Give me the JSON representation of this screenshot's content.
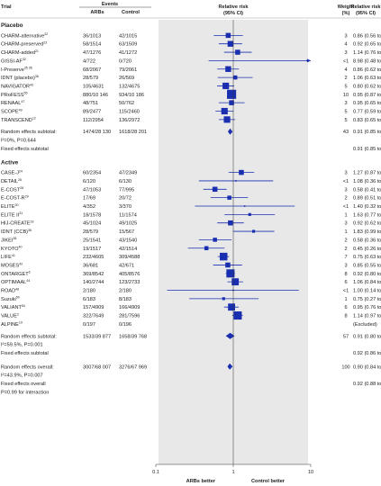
{
  "chart_data": {
    "type": "forest",
    "header": {
      "trial": "Trial",
      "events": "Events",
      "arbs": "ARBs",
      "control": "Control",
      "rr_line1": "Relative risk",
      "rr_line2": "(95% CI)",
      "weight_line1": "Weight",
      "weight_line2": "(%)",
      "rrci_line1": "Relative risk",
      "rrci_line2": "(95% CI)"
    },
    "x_scale": "log",
    "xlim": [
      0.1,
      10
    ],
    "x_ticks": [
      {
        "value": 0.1,
        "label": "0.1"
      },
      {
        "value": 1,
        "label": "1"
      },
      {
        "value": 10,
        "label": "10"
      }
    ],
    "x_left_label": "ARBs better",
    "x_right_label": "Control better",
    "subgroups": [
      {
        "name": "Placebo",
        "trials": [
          {
            "name": "CHARM-alternative",
            "ref": "22",
            "arbs": "36/1013",
            "control": "42/1015",
            "weight": "3",
            "rr": 0.86,
            "lo": 0.56,
            "hi": 1.33,
            "ci_text": "0.86 (0.56 to 1.33)"
          },
          {
            "name": "CHARM-preserved",
            "ref": "23",
            "arbs": "58/1514",
            "control": "63/1509",
            "weight": "4",
            "rr": 0.92,
            "lo": 0.65,
            "hi": 1.3,
            "ci_text": "0.92 (0.65 to 1.30)"
          },
          {
            "name": "CHARM-added",
            "ref": "21",
            "arbs": "47/1276",
            "control": "41/1272",
            "weight": "3",
            "rr": 1.14,
            "lo": 0.76,
            "hi": 1.73,
            "ci_text": "1.14 (0.76 to 1.73)"
          },
          {
            "name": "GISSI-AF",
            "ref": "32",
            "arbs": "4/722",
            "control": "0/720",
            "weight": "<1",
            "rr": 8.98,
            "lo": 0.48,
            "hi": 166.4,
            "ci_text": "8.98 (0.48 to 166.40)"
          },
          {
            "name": "I-Preserve",
            "ref": "35 36",
            "arbs": "68/2067",
            "control": "79/2061",
            "weight": "4",
            "rr": 0.86,
            "lo": 0.62,
            "hi": 1.18,
            "ci_text": "0.86 (0.62 to 1.18)"
          },
          {
            "name": "IDNT (placebo)",
            "ref": "36",
            "arbs": "28/579",
            "control": "26/569",
            "weight": "2",
            "rr": 1.06,
            "lo": 0.63,
            "hi": 1.78,
            "ci_text": "1.06 (0.63 to 1.78)"
          },
          {
            "name": "NAVIGATOR",
            "ref": "43",
            "arbs": "105/4631",
            "control": "132/4675",
            "weight": "5",
            "rr": 0.8,
            "lo": 0.62,
            "hi": 1.03,
            "ci_text": "0.80 (0.62 to 1.03)"
          },
          {
            "name": "PRoFESS",
            "ref": "55",
            "arbs": "880/10 146",
            "control": "934/10 186",
            "weight": "10",
            "rr": 0.95,
            "lo": 0.87,
            "hi": 1.03,
            "ci_text": "0.95 (0.87 to 1.03)"
          },
          {
            "name": "RENAAL",
            "ref": "47",
            "arbs": "48/751",
            "control": "50/762",
            "weight": "3",
            "rr": 0.95,
            "lo": 0.65,
            "hi": 1.4,
            "ci_text": "0.95 (0.65 to 1.40)"
          },
          {
            "name": "SCOPE",
            "ref": "49",
            "arbs": "89/2477",
            "control": "115/2460",
            "weight": "5",
            "rr": 0.77,
            "lo": 0.59,
            "hi": 1.01,
            "ci_text": "0.77 (0.59 to 1.01)"
          },
          {
            "name": "TRANSCEND",
            "ref": "12",
            "arbs": "112/2954",
            "control": "136/2972",
            "weight": "5",
            "rr": 0.83,
            "lo": 0.65,
            "hi": 1.06,
            "ci_text": "0.83 (0.65 to 1.06)"
          }
        ],
        "random": {
          "label": "Random effects subtotal:",
          "arbs": "1474/28 130",
          "control": "1618/28 201",
          "weight": "43",
          "rr": 0.91,
          "lo": 0.85,
          "hi": 0.98,
          "ci_text": "0.91 (0.85 to 0.98)"
        },
        "heterogeneity": "I²=0%, P=0.644",
        "fixed": {
          "label": "Fixed effects subtotal",
          "rr": 0.91,
          "lo": 0.85,
          "hi": 0.98,
          "ci_text": "0.91 (0.85 to 0.98)"
        }
      },
      {
        "name": "Active",
        "trials": [
          {
            "name": "CASE-J",
            "ref": "24",
            "arbs": "60/2354",
            "control": "47/2349",
            "weight": "3",
            "rr": 1.27,
            "lo": 0.87,
            "hi": 1.86,
            "ci_text": "1.27 (0.87 to 1.86)"
          },
          {
            "name": "DETAIL",
            "ref": "26",
            "arbs": "6/120",
            "control": "6/130",
            "weight": "<1",
            "rr": 1.08,
            "lo": 0.36,
            "hi": 3.27,
            "ci_text": "1.08 (0.36 to 3.27)"
          },
          {
            "name": "E-COST",
            "ref": "28",
            "arbs": "47/1053",
            "control": "77/995",
            "weight": "3",
            "rr": 0.58,
            "lo": 0.41,
            "hi": 0.82,
            "ci_text": "0.58 (0.41 to 0.82)"
          },
          {
            "name": "E-COST-R",
            "ref": "29",
            "arbs": "17/69",
            "control": "20/72",
            "weight": "2",
            "rr": 0.89,
            "lo": 0.51,
            "hi": 1.55,
            "ci_text": "0.89 (0.51 to 1.55)"
          },
          {
            "name": "ELITE",
            "ref": "30",
            "arbs": "4/352",
            "control": "3/370",
            "weight": "<1",
            "rr": 1.4,
            "lo": 0.32,
            "hi": 6.22,
            "ci_text": "1.40 (0.32 to 6.22)"
          },
          {
            "name": "ELITE II",
            "ref": "31",
            "arbs": "18/1578",
            "control": "11/1574",
            "weight": "1",
            "rr": 1.63,
            "lo": 0.77,
            "hi": 3.44,
            "ci_text": "1.63 (0.77 to 3.44)"
          },
          {
            "name": "HIJ-CREATE",
            "ref": "33",
            "arbs": "45/1024",
            "control": "49/1025",
            "weight": "3",
            "rr": 0.92,
            "lo": 0.62,
            "hi": 1.37,
            "ci_text": "0.92 (0.62 to 1.37)"
          },
          {
            "name": "IDNT (CCB)",
            "ref": "36",
            "arbs": "28/579",
            "control": "15/567",
            "weight": "1",
            "rr": 1.83,
            "lo": 0.99,
            "hi": 3.39,
            "ci_text": "1.83 (0.99 to 3.39)"
          },
          {
            "name": "JIKEI",
            "ref": "38",
            "arbs": "25/1541",
            "control": "43/1540",
            "weight": "2",
            "rr": 0.58,
            "lo": 0.36,
            "hi": 0.95,
            "ci_text": "0.58 (0.36 to 0.95)"
          },
          {
            "name": "KYOTO",
            "ref": "40",
            "arbs": "19/1517",
            "control": "42/1514",
            "weight": "2",
            "rr": 0.45,
            "lo": 0.26,
            "hi": 0.77,
            "ci_text": "0.45 (0.26 to 0.77)"
          },
          {
            "name": "LIFE",
            "ref": "41",
            "arbs": "232/4605",
            "control": "309/4588",
            "weight": "7",
            "rr": 0.75,
            "lo": 0.63,
            "hi": 0.88,
            "ci_text": "0.75 (0.63 to 0.88)"
          },
          {
            "name": "MOSES",
            "ref": "42",
            "arbs": "36/681",
            "control": "42/671",
            "weight": "3",
            "rr": 0.85,
            "lo": 0.55,
            "hi": 1.3,
            "ci_text": "0.85 (0.55 to 1.30)"
          },
          {
            "name": "ONTARGET",
            "ref": "6",
            "arbs": "369/8542",
            "control": "405/8576",
            "weight": "8",
            "rr": 0.92,
            "lo": 0.8,
            "hi": 1.05,
            "ci_text": "0.92 (0.80 to 1.05)"
          },
          {
            "name": "OPTIMAAL",
            "ref": "44",
            "arbs": "140/2744",
            "control": "123/2733",
            "weight": "6",
            "rr": 1.06,
            "lo": 0.84,
            "hi": 1.34,
            "ci_text": "1.06 (0.84 to 1.34)"
          },
          {
            "name": "ROAD",
            "ref": "48",
            "arbs": "2/180",
            "control": "2/180",
            "weight": "<1",
            "rr": 1.0,
            "lo": 0.14,
            "hi": 7.02,
            "ci_text": "1.00 (0.14 to 7.02)"
          },
          {
            "name": "Suzuki",
            "ref": "50",
            "arbs": "6/183",
            "control": "8/183",
            "weight": "1",
            "rr": 0.75,
            "lo": 0.27,
            "hi": 2.12,
            "ci_text": "0.75 (0.27 to 2.12)"
          },
          {
            "name": "VALIANT",
            "ref": "54",
            "arbs": "157/4909",
            "control": "166/4909",
            "weight": "6",
            "rr": 0.95,
            "lo": 0.76,
            "hi": 1.17,
            "ci_text": "0.95 (0.76 to 1.17)"
          },
          {
            "name": "VALUE",
            "ref": "2",
            "arbs": "322/7649",
            "control": "281/7596",
            "weight": "8",
            "rr": 1.14,
            "lo": 0.97,
            "hi": 1.33,
            "ci_text": "1.14 (0.97 to 1.33)"
          },
          {
            "name": "ALPINE",
            "ref": "19",
            "arbs": "0/197",
            "control": "0/196",
            "weight": "",
            "rr": null,
            "lo": null,
            "hi": null,
            "ci_text": "(Excluded)"
          }
        ],
        "random": {
          "label": "Random effects subtotal:",
          "arbs": "1533/39 877",
          "control": "1658/39 768",
          "weight": "57",
          "rr": 0.91,
          "lo": 0.8,
          "hi": 1.04,
          "ci_text": "0.91 (0.80 to 1.04)"
        },
        "heterogeneity": "I²=59.5%, P=0.001",
        "fixed": {
          "label": "Fixed effects subtotal",
          "rr": 0.92,
          "lo": 0.86,
          "hi": 0.99,
          "ci_text": "0.92 (0.86 to 0.99)"
        }
      }
    ],
    "overall": {
      "random": {
        "label": "Random effects overall:",
        "arbs": "3007/68 007",
        "control": "3276/67 969",
        "weight": "100",
        "rr": 0.9,
        "lo": 0.84,
        "hi": 0.98,
        "ci_text": "0.90 (0.84 to 0.98)"
      },
      "heterogeneity": "I²=43.9%, P=0.007",
      "fixed": {
        "label": "Fixed effects overall",
        "rr": 0.92,
        "lo": 0.88,
        "hi": 0.96,
        "ci_text": "0.92 (0.88 to 0.96)"
      },
      "interaction": "P=0.99 for interaction"
    }
  },
  "colors": {
    "marker": "#1a2fb0",
    "panel": "#e8e8e8",
    "text": "#222222"
  }
}
